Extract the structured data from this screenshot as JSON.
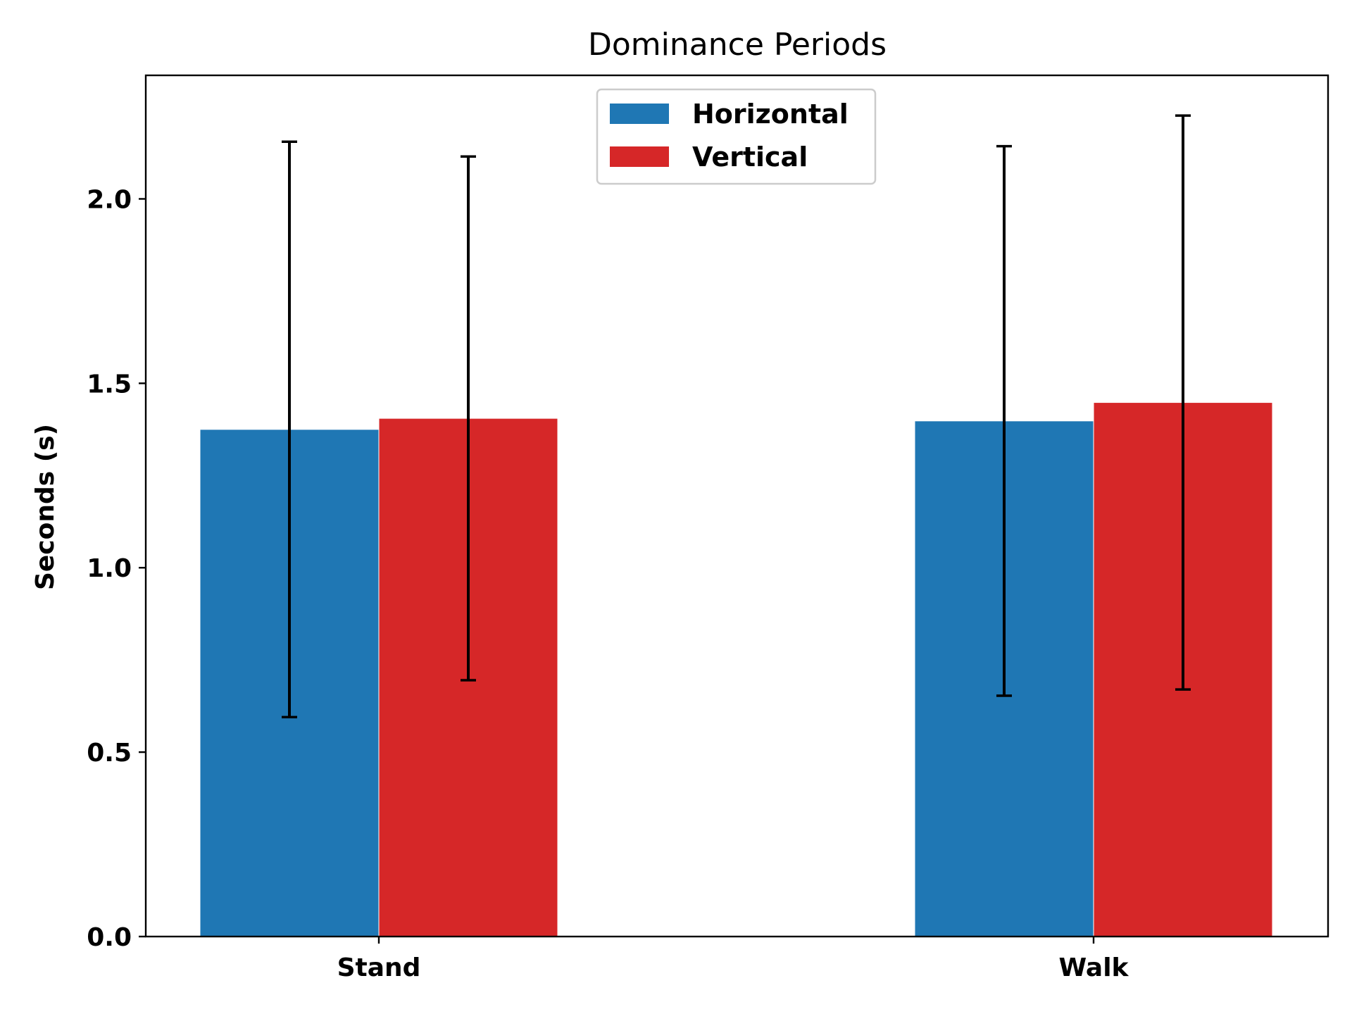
{
  "chart_data": {
    "type": "bar",
    "title": "Dominance Periods",
    "xlabel": "",
    "ylabel": "Seconds (s)",
    "categories": [
      "Stand",
      "Walk"
    ],
    "series": [
      {
        "name": "Horizontal",
        "color": "#1f77b4",
        "values": [
          1.375,
          1.398
        ],
        "error": [
          0.78,
          0.745
        ]
      },
      {
        "name": "Vertical",
        "color": "#d62728",
        "values": [
          1.405,
          1.448
        ],
        "error": [
          0.71,
          0.778
        ]
      }
    ],
    "ylim": [
      0,
      2.335
    ],
    "yticks": [
      "0.0",
      "0.5",
      "1.0",
      "1.5",
      "2.0"
    ],
    "grid": false,
    "legend_position": "upper center"
  }
}
